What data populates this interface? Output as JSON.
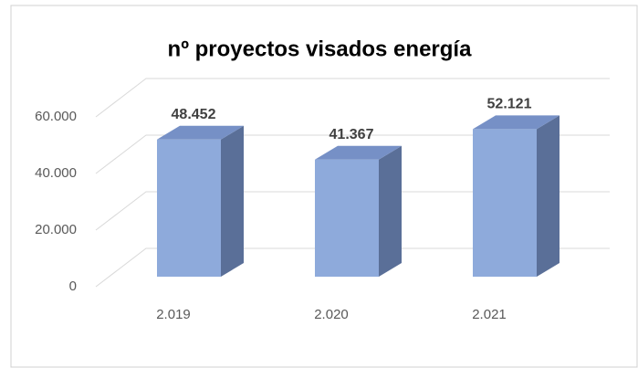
{
  "chart_data": {
    "type": "bar3d",
    "title": "nº proyectos visados energía",
    "categories": [
      "2.019",
      "2.020",
      "2.021"
    ],
    "values": [
      48452,
      41367,
      52121
    ],
    "value_labels": [
      "48.452",
      "41.367",
      "52.121"
    ],
    "color": "#8eaadb",
    "ylim": [
      0,
      60000
    ],
    "yticks": [
      0,
      {
        "value": 20000,
        "label": "20.000"
      },
      {
        "value": 40000,
        "label": "40.000"
      },
      {
        "value": 60000,
        "label": "60.000"
      }
    ],
    "grid": true
  }
}
